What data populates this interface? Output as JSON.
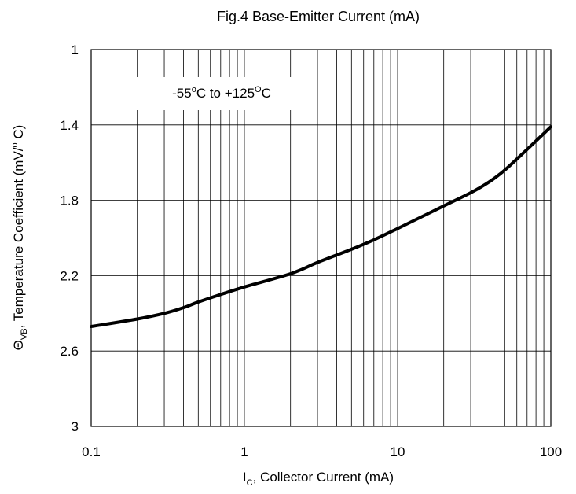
{
  "chart_data": {
    "type": "line",
    "title": "Fig.4 Base-Emitter Current (mA)",
    "xlabel": {
      "main": "I",
      "sub": "C",
      "rest": ", Collector Current (mA)"
    },
    "ylabel": {
      "main": "Θ",
      "sub": "VB",
      "rest": ", Temperature Coefficient (mV/",
      "sup": "o",
      "end": " C)"
    },
    "x_scale": "log",
    "xlim": [
      0.1,
      100
    ],
    "ylim": [
      1,
      3
    ],
    "y_inverted": true,
    "x_ticks": [
      "0.1",
      "1",
      "10",
      "100"
    ],
    "y_ticks": [
      "1",
      "1.4",
      "1.8",
      "2.2",
      "2.6",
      "3"
    ],
    "grid": true,
    "annotation": {
      "prefix": "-55",
      "sup1": "o",
      "middle": "C to +125",
      "sup2": "O",
      "suffix": "C"
    },
    "series": [
      {
        "x": [
          0.1,
          0.2,
          0.3,
          0.4,
          0.5,
          0.7,
          1,
          2,
          3,
          5,
          7,
          10,
          20,
          30,
          40,
          50,
          70,
          100
        ],
        "y": [
          2.47,
          2.43,
          2.4,
          2.37,
          2.34,
          2.3,
          2.26,
          2.19,
          2.13,
          2.06,
          2.01,
          1.95,
          1.83,
          1.76,
          1.7,
          1.64,
          1.53,
          1.41
        ]
      }
    ],
    "line_color": "#000000"
  }
}
